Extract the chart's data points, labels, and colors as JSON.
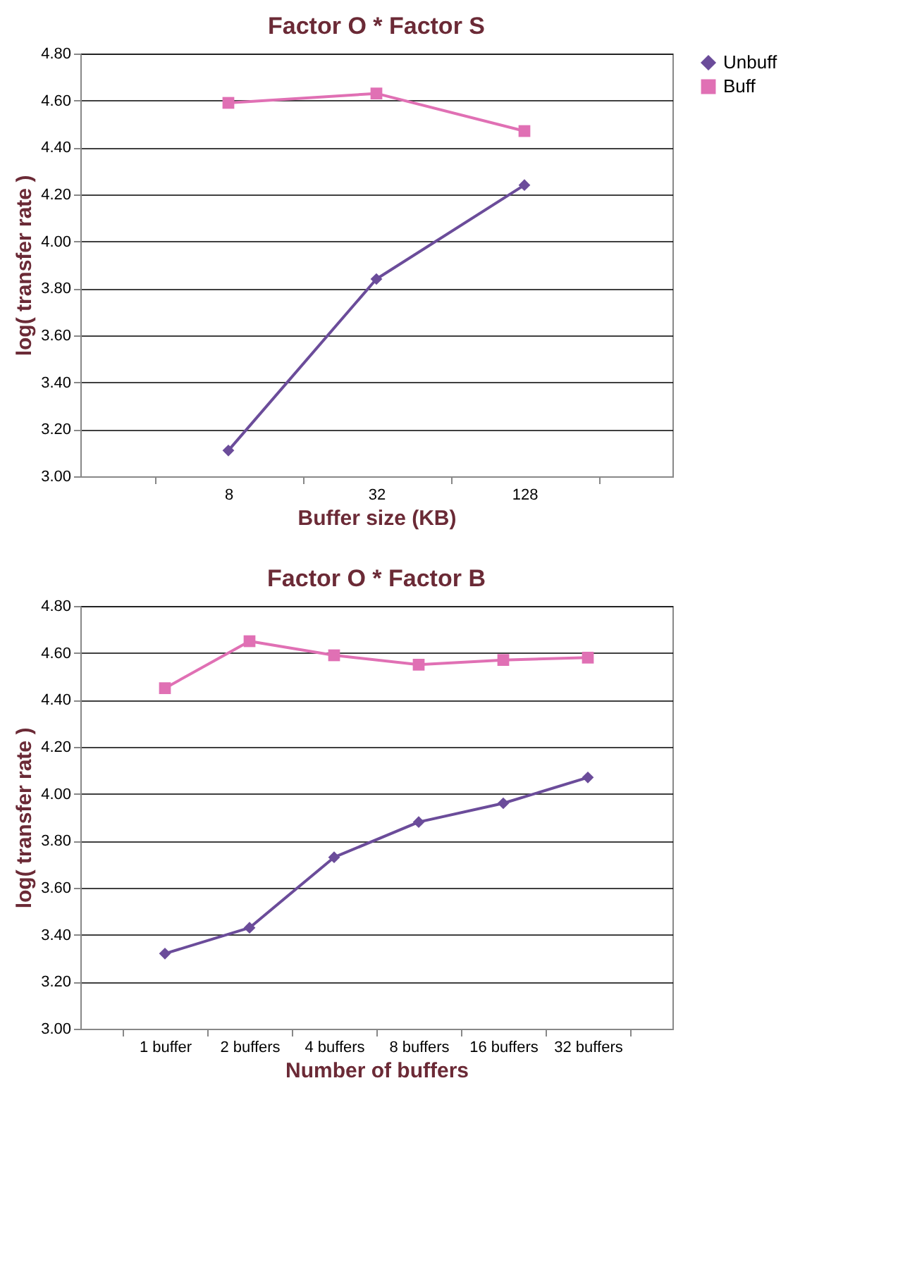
{
  "chart_data": [
    {
      "type": "line",
      "title": "Factor O * Factor S",
      "xlabel": "Buffer size (KB)",
      "ylabel": "log( transfer rate )",
      "categories": [
        "8",
        "32",
        "128"
      ],
      "series": [
        {
          "name": "Unbuff",
          "color": "#6b4c9a",
          "marker": "diamond",
          "values": [
            3.11,
            3.84,
            4.24
          ]
        },
        {
          "name": "Buff",
          "color": "#e070b4",
          "marker": "square",
          "values": [
            4.59,
            4.63,
            4.47
          ]
        }
      ],
      "ylim": [
        3.0,
        4.8
      ],
      "yticks": [
        {
          "value": 3.0,
          "label": "3.00"
        },
        {
          "value": 3.2,
          "label": "3.20"
        },
        {
          "value": 3.4,
          "label": "3.40"
        },
        {
          "value": 3.6,
          "label": "3.60"
        },
        {
          "value": 3.8,
          "label": "3.80"
        },
        {
          "value": 4.0,
          "label": "4.00"
        },
        {
          "value": 4.2,
          "label": "4.20"
        },
        {
          "value": 4.4,
          "label": "4.40"
        },
        {
          "value": 4.6,
          "label": "4.60"
        },
        {
          "value": 4.8,
          "label": "4.80"
        }
      ],
      "grid": "y",
      "legend": "right",
      "line_style": "solid"
    },
    {
      "type": "line",
      "title": "Factor O * Factor B",
      "xlabel": "Number of buffers",
      "ylabel": "log( transfer rate )",
      "categories": [
        "1 buffer",
        "2 buffers",
        "4 buffers",
        "8 buffers",
        "16 buffers",
        "32 buffers"
      ],
      "series": [
        {
          "name": "Unbuff",
          "color": "#6b4c9a",
          "marker": "diamond",
          "values": [
            3.32,
            3.43,
            3.73,
            3.88,
            3.96,
            4.07
          ]
        },
        {
          "name": "Buff",
          "color": "#e070b4",
          "marker": "square",
          "values": [
            4.45,
            4.65,
            4.59,
            4.55,
            4.57,
            4.58
          ]
        }
      ],
      "ylim": [
        3.0,
        4.8
      ],
      "yticks": [
        {
          "value": 3.0,
          "label": "3.00"
        },
        {
          "value": 3.2,
          "label": "3.20"
        },
        {
          "value": 3.4,
          "label": "3.40"
        },
        {
          "value": 3.6,
          "label": "3.60"
        },
        {
          "value": 3.8,
          "label": "3.80"
        },
        {
          "value": 4.0,
          "label": "4.00"
        },
        {
          "value": 4.2,
          "label": "4.20"
        },
        {
          "value": 4.4,
          "label": "4.40"
        },
        {
          "value": 4.6,
          "label": "4.60"
        },
        {
          "value": 4.8,
          "label": "4.80"
        }
      ],
      "grid": "y",
      "legend": "right",
      "line_style": "solid"
    }
  ]
}
